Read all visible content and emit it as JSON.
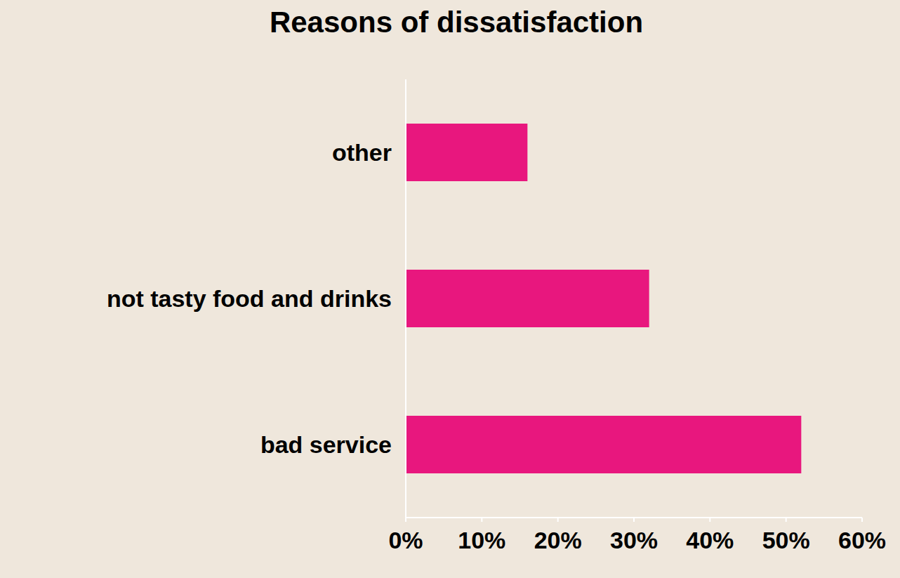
{
  "chart_data": {
    "type": "bar",
    "title": "Reasons of dissatisfaction",
    "orientation": "horizontal",
    "categories": [
      "other",
      "not tasty food and drinks",
      "bad service"
    ],
    "values": [
      16,
      32,
      52
    ],
    "color": "#e8177e",
    "xlim": [
      0,
      60
    ],
    "xticks": [
      {
        "value": 0,
        "label": "0%"
      },
      {
        "value": 10,
        "label": "10%"
      },
      {
        "value": 20,
        "label": "20%"
      },
      {
        "value": 30,
        "label": "30%"
      },
      {
        "value": 40,
        "label": "40%"
      },
      {
        "value": 50,
        "label": "50%"
      },
      {
        "value": 60,
        "label": "60%"
      }
    ],
    "grid": false
  }
}
